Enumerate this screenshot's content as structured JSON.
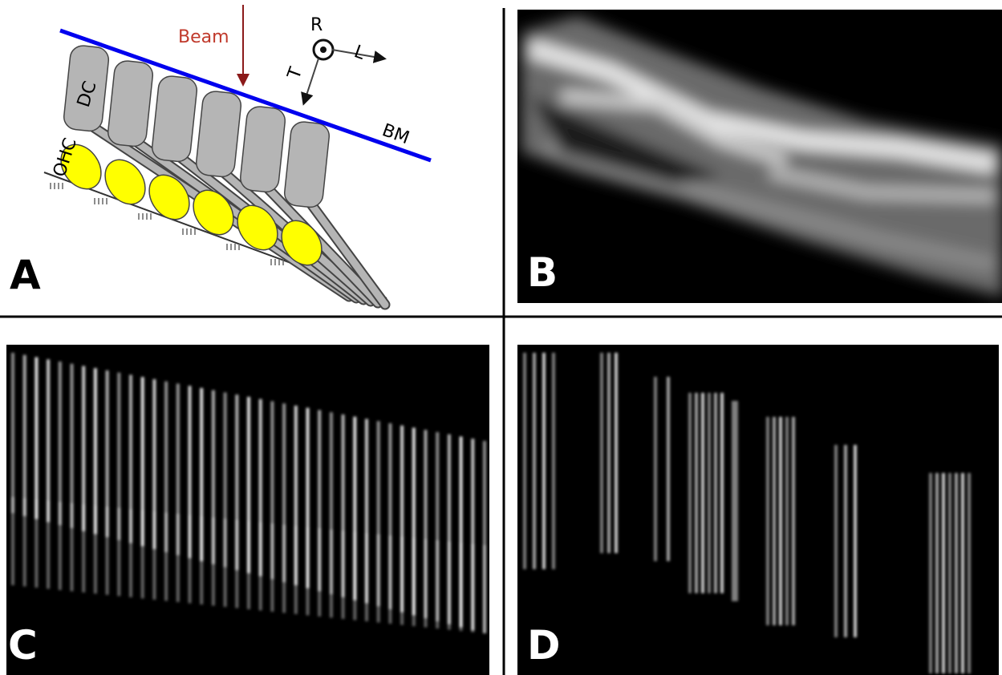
{
  "panels": [
    {
      "label": "A"
    },
    {
      "label": "B"
    },
    {
      "label": "C"
    },
    {
      "label": "D"
    }
  ],
  "diagram": {
    "beam": "Beam",
    "axes": [
      "R",
      "L",
      "T"
    ],
    "dc": "DC",
    "ohc": "OHC",
    "bm": "BM"
  }
}
